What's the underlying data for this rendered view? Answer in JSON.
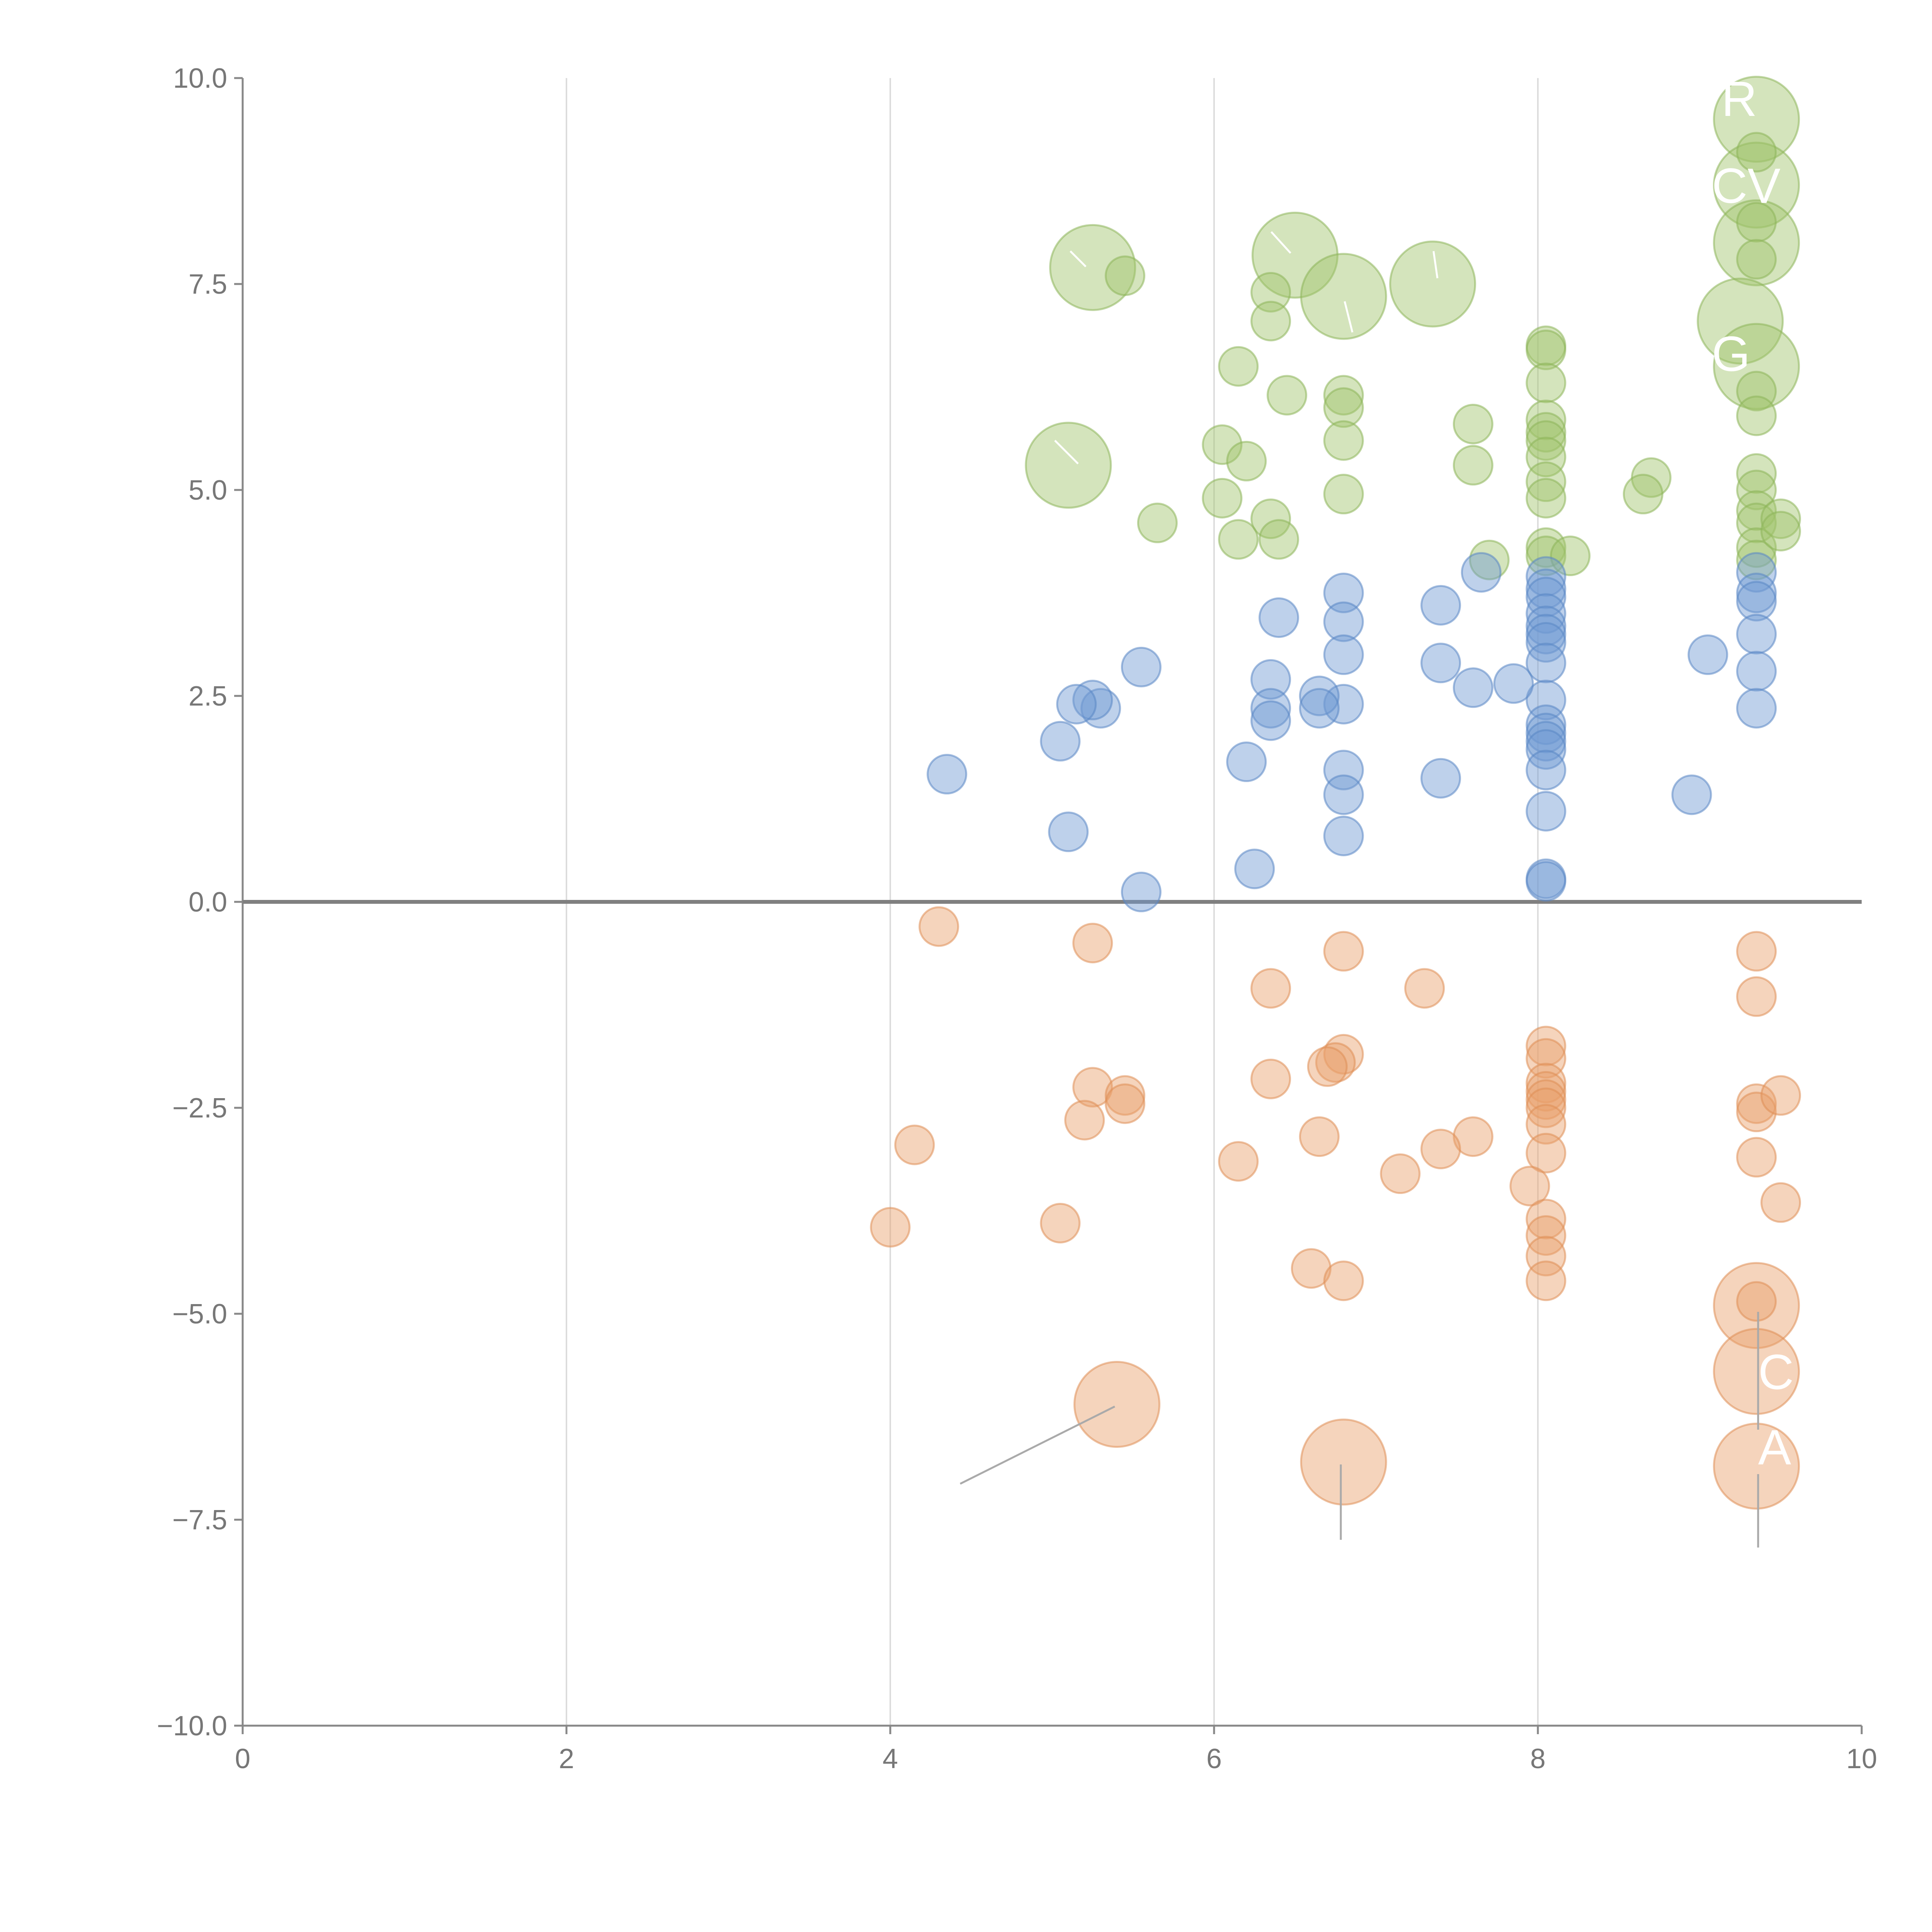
{
  "chart_data": {
    "type": "scatter",
    "title": "",
    "xlabel": "",
    "ylabel": "",
    "xlim": [
      0,
      10
    ],
    "ylim": [
      -10,
      10
    ],
    "x_ticks": [
      "0",
      "2",
      "4",
      "6",
      "8",
      "10"
    ],
    "y_ticks": [
      "10.0",
      "7.5",
      "5.0",
      "2.5",
      "0.0",
      "−2.5",
      "−5.0",
      "−7.5",
      "−10.0"
    ],
    "grid": "vertical",
    "zero_line": true,
    "colors": {
      "green": "#9fc46b",
      "blue": "#6f98d2",
      "orange": "#e8a06a"
    },
    "series": [
      {
        "color": "green",
        "points": [
          [
            9.35,
            9.5,
            "l"
          ],
          [
            9.35,
            8.7,
            "l"
          ],
          [
            9.35,
            8.0,
            "l"
          ],
          [
            9.25,
            7.05,
            "l"
          ],
          [
            9.35,
            6.5,
            "l"
          ],
          [
            5.25,
            7.7,
            "l"
          ],
          [
            6.5,
            7.85,
            "l"
          ],
          [
            6.8,
            7.35,
            "l"
          ],
          [
            7.35,
            7.5,
            "l"
          ],
          [
            5.1,
            5.3,
            "l"
          ],
          [
            9.35,
            9.1,
            "s"
          ],
          [
            9.35,
            8.25,
            "s"
          ],
          [
            9.35,
            7.8,
            "s"
          ],
          [
            9.35,
            6.2,
            "s"
          ],
          [
            9.35,
            5.9,
            "s"
          ],
          [
            9.35,
            5.2,
            "s"
          ],
          [
            9.35,
            5.0,
            "s"
          ],
          [
            9.35,
            4.75,
            "s"
          ],
          [
            9.35,
            4.6,
            "s"
          ],
          [
            9.35,
            4.3,
            "s"
          ],
          [
            9.35,
            4.15,
            "s"
          ],
          [
            9.5,
            4.65,
            "s"
          ],
          [
            9.5,
            4.5,
            "s"
          ],
          [
            5.45,
            7.6,
            "s"
          ],
          [
            6.35,
            7.4,
            "s"
          ],
          [
            6.35,
            7.05,
            "s"
          ],
          [
            6.15,
            6.5,
            "s"
          ],
          [
            6.45,
            6.15,
            "s"
          ],
          [
            6.8,
            6.15,
            "s"
          ],
          [
            6.8,
            6.0,
            "s"
          ],
          [
            6.8,
            5.6,
            "s"
          ],
          [
            6.05,
            5.55,
            "s"
          ],
          [
            6.2,
            5.35,
            "s"
          ],
          [
            6.8,
            4.95,
            "s"
          ],
          [
            6.05,
            4.9,
            "s"
          ],
          [
            6.35,
            4.65,
            "s"
          ],
          [
            6.15,
            4.4,
            "s"
          ],
          [
            6.4,
            4.4,
            "s"
          ],
          [
            5.65,
            4.6,
            "s"
          ],
          [
            7.6,
            5.8,
            "s"
          ],
          [
            7.6,
            5.3,
            "s"
          ],
          [
            7.7,
            4.15,
            "s"
          ],
          [
            8.05,
            6.75,
            "s"
          ],
          [
            8.05,
            6.7,
            "s"
          ],
          [
            8.05,
            6.3,
            "s"
          ],
          [
            8.05,
            5.85,
            "s"
          ],
          [
            8.05,
            5.7,
            "s"
          ],
          [
            8.05,
            5.6,
            "s"
          ],
          [
            8.05,
            5.4,
            "s"
          ],
          [
            8.05,
            5.1,
            "s"
          ],
          [
            8.05,
            4.9,
            "s"
          ],
          [
            8.05,
            4.3,
            "s"
          ],
          [
            8.05,
            4.2,
            "s"
          ],
          [
            8.2,
            4.2,
            "s"
          ],
          [
            8.7,
            5.15,
            "s"
          ],
          [
            8.65,
            4.95,
            "s"
          ]
        ]
      },
      {
        "color": "blue",
        "points": [
          [
            9.35,
            4.0,
            "s"
          ],
          [
            9.35,
            3.75,
            "s"
          ],
          [
            9.35,
            3.65,
            "s"
          ],
          [
            9.35,
            3.25,
            "s"
          ],
          [
            9.35,
            2.8,
            "s"
          ],
          [
            9.35,
            2.35,
            "s"
          ],
          [
            9.05,
            3.0,
            "s"
          ],
          [
            8.95,
            1.3,
            "s"
          ],
          [
            8.05,
            3.95,
            "s"
          ],
          [
            8.05,
            3.8,
            "s"
          ],
          [
            8.05,
            3.7,
            "s"
          ],
          [
            8.05,
            3.5,
            "s"
          ],
          [
            8.05,
            3.35,
            "s"
          ],
          [
            8.05,
            3.25,
            "s"
          ],
          [
            8.05,
            3.15,
            "s"
          ],
          [
            8.05,
            2.9,
            "s"
          ],
          [
            8.05,
            2.45,
            "s"
          ],
          [
            8.05,
            2.15,
            "s"
          ],
          [
            8.05,
            2.05,
            "s"
          ],
          [
            8.05,
            1.95,
            "s"
          ],
          [
            8.05,
            1.85,
            "s"
          ],
          [
            8.05,
            1.6,
            "s"
          ],
          [
            8.05,
            1.1,
            "s"
          ],
          [
            8.05,
            0.28,
            "s"
          ],
          [
            8.05,
            0.25,
            "s"
          ],
          [
            7.85,
            2.65,
            "s"
          ],
          [
            7.65,
            4.0,
            "s"
          ],
          [
            7.6,
            2.6,
            "s"
          ],
          [
            7.4,
            3.6,
            "s"
          ],
          [
            7.4,
            2.9,
            "s"
          ],
          [
            7.4,
            1.5,
            "s"
          ],
          [
            6.8,
            3.75,
            "s"
          ],
          [
            6.8,
            3.4,
            "s"
          ],
          [
            6.8,
            3.0,
            "s"
          ],
          [
            6.8,
            2.4,
            "s"
          ],
          [
            6.8,
            1.6,
            "s"
          ],
          [
            6.8,
            1.3,
            "s"
          ],
          [
            6.8,
            0.8,
            "s"
          ],
          [
            6.65,
            2.5,
            "s"
          ],
          [
            6.65,
            2.35,
            "s"
          ],
          [
            6.4,
            3.45,
            "s"
          ],
          [
            6.35,
            2.7,
            "s"
          ],
          [
            6.35,
            2.35,
            "s"
          ],
          [
            6.35,
            2.2,
            "s"
          ],
          [
            6.2,
            1.7,
            "s"
          ],
          [
            6.25,
            0.4,
            "s"
          ],
          [
            5.55,
            2.85,
            "s"
          ],
          [
            5.3,
            2.35,
            "s"
          ],
          [
            5.25,
            2.45,
            "s"
          ],
          [
            5.15,
            2.4,
            "s"
          ],
          [
            5.05,
            1.95,
            "s"
          ],
          [
            5.1,
            0.85,
            "s"
          ],
          [
            5.55,
            0.12,
            "s"
          ],
          [
            4.35,
            1.55,
            "s"
          ]
        ]
      },
      {
        "color": "orange",
        "points": [
          [
            9.35,
            -4.9,
            "l"
          ],
          [
            9.35,
            -5.7,
            "l"
          ],
          [
            9.35,
            -6.85,
            "l"
          ],
          [
            5.4,
            -6.1,
            "l"
          ],
          [
            6.8,
            -6.8,
            "l"
          ],
          [
            9.35,
            -0.6,
            "s"
          ],
          [
            9.35,
            -1.15,
            "s"
          ],
          [
            9.35,
            -2.45,
            "s"
          ],
          [
            9.35,
            -2.55,
            "s"
          ],
          [
            9.35,
            -3.1,
            "s"
          ],
          [
            9.35,
            -4.85,
            "s"
          ],
          [
            9.5,
            -2.35,
            "s"
          ],
          [
            9.5,
            -3.65,
            "s"
          ],
          [
            8.05,
            -1.75,
            "s"
          ],
          [
            8.05,
            -1.9,
            "s"
          ],
          [
            8.05,
            -2.2,
            "s"
          ],
          [
            8.05,
            -2.3,
            "s"
          ],
          [
            8.05,
            -2.4,
            "s"
          ],
          [
            8.05,
            -2.5,
            "s"
          ],
          [
            8.05,
            -2.7,
            "s"
          ],
          [
            8.05,
            -3.05,
            "s"
          ],
          [
            7.95,
            -3.45,
            "s"
          ],
          [
            8.05,
            -3.85,
            "s"
          ],
          [
            8.05,
            -4.05,
            "s"
          ],
          [
            8.05,
            -4.3,
            "s"
          ],
          [
            8.05,
            -4.6,
            "s"
          ],
          [
            7.3,
            -1.05,
            "s"
          ],
          [
            7.6,
            -2.85,
            "s"
          ],
          [
            7.4,
            -3.0,
            "s"
          ],
          [
            7.15,
            -3.3,
            "s"
          ],
          [
            6.8,
            -0.6,
            "s"
          ],
          [
            6.8,
            -1.85,
            "s"
          ],
          [
            6.75,
            -1.95,
            "s"
          ],
          [
            6.7,
            -2.0,
            "s"
          ],
          [
            6.65,
            -2.85,
            "s"
          ],
          [
            6.6,
            -4.45,
            "s"
          ],
          [
            6.8,
            -4.6,
            "s"
          ],
          [
            6.35,
            -1.05,
            "s"
          ],
          [
            6.35,
            -2.15,
            "s"
          ],
          [
            6.15,
            -3.15,
            "s"
          ],
          [
            5.25,
            -0.5,
            "s"
          ],
          [
            5.25,
            -2.25,
            "s"
          ],
          [
            5.45,
            -2.35,
            "s"
          ],
          [
            5.45,
            -2.45,
            "s"
          ],
          [
            5.2,
            -2.65,
            "s"
          ],
          [
            5.05,
            -3.9,
            "s"
          ],
          [
            4.3,
            -0.3,
            "s"
          ],
          [
            4.15,
            -2.95,
            "s"
          ],
          [
            4.0,
            -3.95,
            "s"
          ]
        ]
      }
    ],
    "annotations": [
      {
        "text": "R"
      },
      {
        "text": "CV"
      },
      {
        "text": "G"
      },
      {
        "text": "C"
      },
      {
        "text": "A"
      }
    ]
  }
}
